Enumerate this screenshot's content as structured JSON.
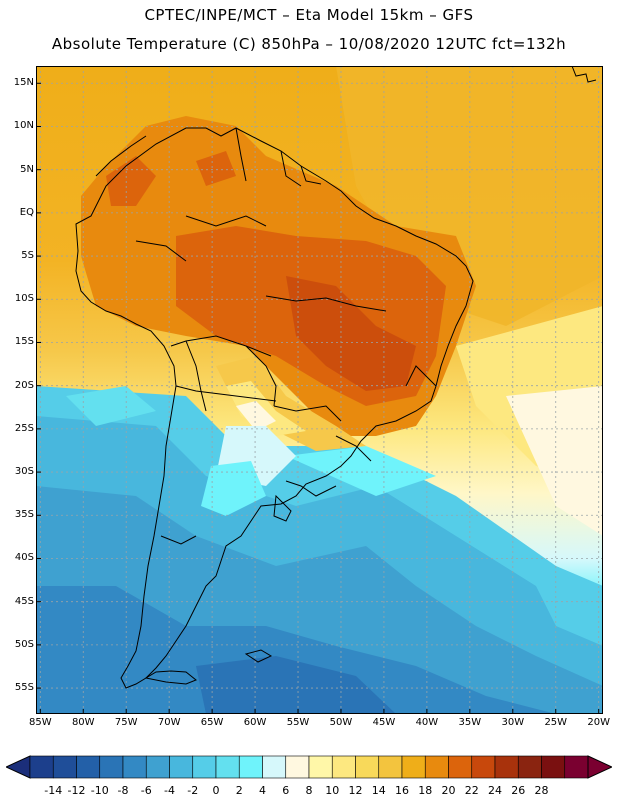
{
  "title_line1": "CPTEC/INPE/MCT  –   Eta Model 15km  –  GFS",
  "title_line2": "Absolute Temperature (C) 850hPa  –  10/08/2020 12UTC fct=132h",
  "map": {
    "region": "South America",
    "variable": "Absolute Temperature (C) 850hPa",
    "lon_range": [
      -85.5,
      -19.5
    ],
    "lat_range": [
      -58,
      17
    ],
    "lat_labels": [
      "15N",
      "10N",
      "5N",
      "EQ",
      "5S",
      "10S",
      "15S",
      "20S",
      "25S",
      "30S",
      "35S",
      "40S",
      "45S",
      "50S",
      "55S"
    ],
    "lat_values": [
      15,
      10,
      5,
      0,
      -5,
      -10,
      -15,
      -20,
      -25,
      -30,
      -35,
      -40,
      -45,
      -50,
      -55
    ],
    "lon_labels": [
      "85W",
      "80W",
      "75W",
      "70W",
      "65W",
      "60W",
      "55W",
      "50W",
      "45W",
      "40W",
      "35W",
      "30W",
      "25W",
      "20W"
    ],
    "lon_values": [
      -85,
      -80,
      -75,
      -70,
      -65,
      -60,
      -55,
      -50,
      -45,
      -40,
      -35,
      -30,
      -25,
      -20
    ]
  },
  "colorbar": {
    "labels": [
      "-14",
      "-12",
      "-10",
      "-8",
      "-6",
      "-4",
      "-2",
      "0",
      "2",
      "4",
      "6",
      "8",
      "10",
      "12",
      "14",
      "16",
      "18",
      "20",
      "22",
      "24",
      "26",
      "28"
    ],
    "colors": [
      "#1c3f8c",
      "#1f4e99",
      "#2360a8",
      "#2a74b6",
      "#3389c4",
      "#3fa1d0",
      "#48b7dd",
      "#55cde8",
      "#63e0ef",
      "#6ff3fb",
      "#d6f8fb",
      "#fff8e0",
      "#fff7a8",
      "#fde880",
      "#f8d95a",
      "#f3c43e",
      "#efae19",
      "#e88a0e",
      "#dc640c",
      "#c8480c",
      "#a8320c",
      "#8a2410",
      "#7a1010",
      "#7a0030"
    ],
    "low_color": "#1b2e7a",
    "high_color": "#7a0030"
  }
}
